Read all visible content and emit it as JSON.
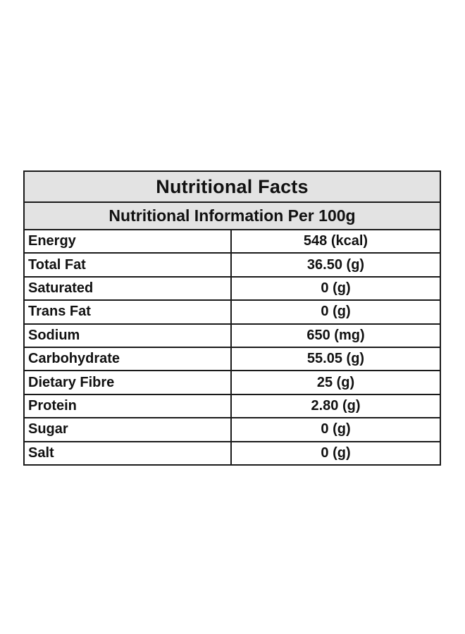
{
  "table": {
    "title": "Nutritional Facts",
    "subtitle": "Nutritional Information Per 100g",
    "rows": [
      {
        "name": "Energy",
        "value": "548 (kcal)"
      },
      {
        "name": "Total Fat",
        "value": "36.50 (g)"
      },
      {
        "name": "Saturated",
        "value": "0 (g)"
      },
      {
        "name": "Trans Fat",
        "value": "0 (g)"
      },
      {
        "name": "Sodium",
        "value": "650 (mg)"
      },
      {
        "name": "Carbohydrate",
        "value": "55.05 (g)"
      },
      {
        "name": "Dietary Fibre",
        "value": "25 (g)"
      },
      {
        "name": "Protein",
        "value": "2.80 (g)"
      },
      {
        "name": "Sugar",
        "value": "0 (g)"
      },
      {
        "name": "Salt",
        "value": "0 (g)"
      }
    ]
  },
  "colors": {
    "header_background": "#e3e3e3",
    "border": "#1a1a1a",
    "page_background": "#ffffff"
  }
}
